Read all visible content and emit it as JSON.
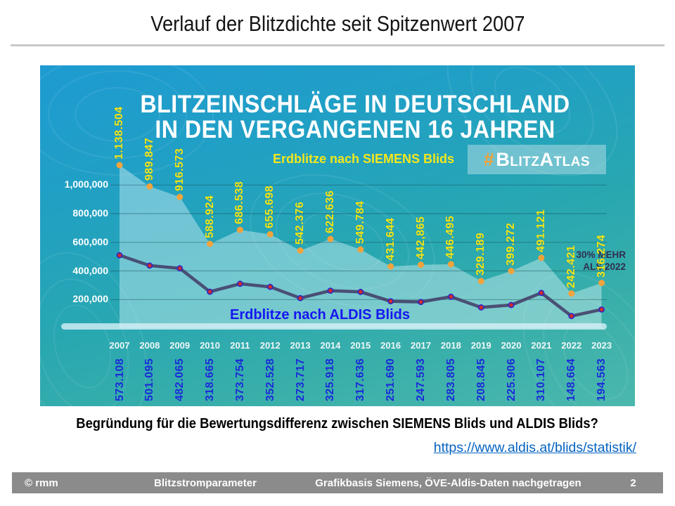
{
  "slide": {
    "title": "Verlauf der Blitzdichte seit Spitzenwert 2007",
    "question": "Begründung für die Bewertungsdifferenz zwischen SIEMENS Blids und ALDIS Blids?",
    "link": "https://www.aldis.at/blids/statistik/",
    "footer": {
      "copyright": "© rmm",
      "topic": "Blitzstromparameter",
      "source": "Grafikbasis Siemens, ÖVE-Aldis-Daten nachgetragen",
      "page": "2"
    }
  },
  "infographic": {
    "title_line1": "BLITZEINSCHLÄGE IN DEUTSCHLAND",
    "title_line2": "IN DEN VERGANGENEN 16 JAHREN",
    "hashtag_symbol": "#",
    "hashtag_text": "BlitzAtlas",
    "annotation_line1": "30% MEHR",
    "annotation_line2": "ALS 2022"
  },
  "chart_data": {
    "type": "area-line-combo",
    "title": "BLITZEINSCHLÄGE IN DEUTSCHLAND IN DEN VERGANGENEN 16 JAHREN",
    "categories": [
      "2007",
      "2008",
      "2009",
      "2010",
      "2011",
      "2012",
      "2013",
      "2014",
      "2015",
      "2016",
      "2017",
      "2018",
      "2019",
      "2020",
      "2021",
      "2022",
      "2023"
    ],
    "y_tick_labels": [
      "1,000,000",
      "800,000",
      "600,000",
      "400,000",
      "200,000"
    ],
    "y_tick_values": [
      1000000,
      800000,
      600000,
      400000,
      200000
    ],
    "ylim": [
      0,
      1200000
    ],
    "grid": true,
    "series": [
      {
        "name": "Erdblitze nach SIEMENS Blids",
        "style": "area",
        "color": "#f2a33c",
        "values": [
          1138504,
          989847,
          916573,
          588924,
          686538,
          655698,
          542376,
          622636,
          549784,
          431644,
          442865,
          446495,
          329189,
          399272,
          491121,
          242421,
          316274
        ],
        "labels": [
          "1.138.504",
          "989.847",
          "916.573",
          "588.924",
          "686.538",
          "655.698",
          "542.376",
          "622.636",
          "549.784",
          "431.644",
          "442,865",
          "446.495",
          "329.189",
          "399.272",
          "491.121",
          "242.421",
          "316.274"
        ]
      },
      {
        "name": "Erdblitze nach ALDIS Blids",
        "style": "line",
        "color": "#45446e",
        "values": [
          573108,
          501095,
          482065,
          318665,
          373754,
          352528,
          273717,
          325918,
          317636,
          251690,
          247593,
          283805,
          208845,
          225906,
          310107,
          148664,
          194563
        ],
        "labels": [
          "573.108",
          "501.095",
          "482.065",
          "318.665",
          "373.754",
          "352.528",
          "273.717",
          "325.918",
          "317.636",
          "251.690",
          "247.593",
          "283.805",
          "208.845",
          "225.906",
          "310.107",
          "148.664",
          "194.563"
        ]
      }
    ]
  }
}
